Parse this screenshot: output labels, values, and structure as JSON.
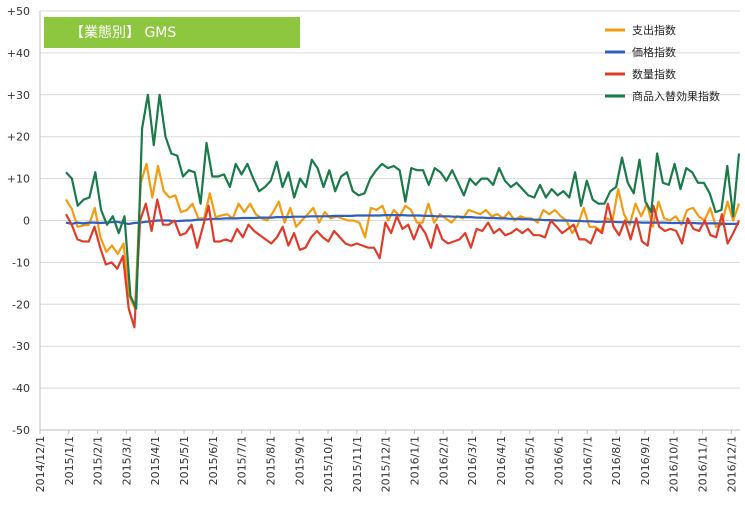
{
  "chart_data": {
    "type": "line",
    "title": "【業態別】 GMS",
    "title_bg": "#8dc63f",
    "ylim": [
      -50,
      50
    ],
    "y_ticks": [
      "-50",
      "-40",
      "-30",
      "-20",
      "-10",
      "0",
      "+10",
      "+20",
      "+30",
      "+40",
      "+50"
    ],
    "x_ticks": [
      "2014/12/1",
      "2015/1/1",
      "2015/2/1",
      "2015/3/1",
      "2015/4/1",
      "2015/5/1",
      "2015/6/1",
      "2015/7/1",
      "2015/8/1",
      "2015/9/1",
      "2015/10/1",
      "2015/11/1",
      "2015/12/1",
      "2016/1/1",
      "2016/2/1",
      "2016/3/1",
      "2016/4/1",
      "2016/5/1",
      "2016/6/1",
      "2016/7/1",
      "2016/8/1",
      "2016/9/1",
      "2016/10/1",
      "2016/11/1",
      "2016/12/1"
    ],
    "x_unit": "週",
    "grid": true,
    "legend_position": "top-right",
    "series": [
      {
        "name": "支出指数",
        "color": "#f39c12",
        "values": [
          5,
          2.8,
          -1.5,
          -1.2,
          -1,
          3,
          -4,
          -7.5,
          -6,
          -8,
          -5.5,
          -18,
          -21,
          9,
          13.5,
          5.5,
          13,
          7,
          5.5,
          6,
          2,
          2.5,
          4,
          0.5,
          0.5,
          6.5,
          0.8,
          1.2,
          1.5,
          0.5,
          4,
          2,
          4,
          1.5,
          0.5,
          0,
          2,
          4.5,
          -0.5,
          3,
          -1.5,
          0,
          1.5,
          3,
          -0.5,
          2,
          0.5,
          1,
          0.5,
          0,
          0,
          -0.5,
          -4,
          3,
          2.5,
          3.5,
          0,
          2.5,
          1,
          3.5,
          2.5,
          -0.5,
          -0.5,
          4,
          -0.5,
          1.5,
          0.5,
          -0.5,
          1,
          0.5,
          2.5,
          2,
          1.5,
          2.5,
          1,
          1.5,
          0.5,
          2,
          0,
          1,
          0.5,
          0.5,
          -0.5,
          2.5,
          1.5,
          2.5,
          1,
          0,
          -3,
          -1,
          3,
          -1.5,
          -1.5,
          -2.5,
          0.5,
          0,
          7.5,
          1.5,
          -1,
          4,
          1,
          4,
          -1.5,
          4.5,
          0.5,
          0,
          1,
          -1,
          2.5,
          3,
          1,
          0,
          3,
          -1.5,
          -1,
          4.5,
          0,
          4
        ],
        "values_note": "weekly"
      },
      {
        "name": "価格指数",
        "color": "#2e5fbf",
        "values": [
          -0.5,
          -0.8,
          -0.5,
          -0.7,
          -0.5,
          -0.5,
          -0.6,
          -0.5,
          -0.4,
          -0.3,
          -0.6,
          -0.8,
          -0.6,
          -0.5,
          -0.3,
          -0.2,
          0,
          0,
          0,
          -0.2,
          -0.1,
          0,
          0,
          0.2,
          0.2,
          0.3,
          0.4,
          0.4,
          0.5,
          0.5,
          0.5,
          0.6,
          0.6,
          0.6,
          0.7,
          0.7,
          0.7,
          0.8,
          0.8,
          0.8,
          0.9,
          0.9,
          0.9,
          1,
          1,
          1,
          1,
          1.1,
          1.1,
          1.1,
          1.1,
          1.2,
          1.2,
          1.2,
          1.2,
          1.2,
          1.3,
          1.3,
          1.3,
          1.3,
          1.2,
          1.2,
          1.2,
          1.1,
          1.1,
          1,
          1,
          1,
          0.9,
          0.9,
          0.8,
          0.8,
          0.7,
          0.7,
          0.6,
          0.6,
          0.5,
          0.5,
          0.4,
          0.4,
          0.3,
          0.3,
          0.2,
          0.2,
          0.1,
          0.1,
          0,
          0,
          0,
          -0.1,
          -0.1,
          -0.2,
          -0.2,
          -0.3,
          -0.3,
          -0.3,
          -0.3,
          -0.4,
          -0.4,
          -0.4,
          -0.4,
          -0.5,
          -0.5,
          -0.5,
          -0.5,
          -0.5,
          -0.6,
          -0.6,
          -0.6,
          -0.6,
          -0.6,
          -0.7,
          -0.7,
          -0.7,
          -0.7,
          -0.8,
          -0.8,
          -0.8,
          -0.8
        ],
        "values_note": "weekly"
      },
      {
        "name": "数量指数",
        "color": "#e03c2a",
        "values": [
          1.5,
          -1,
          -4.5,
          -5,
          -5,
          -1.5,
          -6.5,
          -10.5,
          -10,
          -11.5,
          -8.5,
          -21,
          -25.5,
          0,
          4,
          -2.5,
          5,
          -1,
          -1,
          0,
          -3.5,
          -3,
          -1,
          -6.5,
          -1.5,
          3.5,
          -5,
          -5,
          -4.5,
          -5,
          -2,
          -4,
          -1,
          -2.5,
          -3.5,
          -4.5,
          -5.5,
          -4,
          -1.5,
          -6,
          -3,
          -7,
          -6.5,
          -4,
          -2.5,
          -4,
          -5,
          -2.5,
          -4,
          -5.5,
          -6,
          -5.5,
          -6,
          -6.5,
          -6.5,
          -9,
          -0.5,
          -3,
          1,
          -2,
          -1,
          -4.5,
          -1,
          -3,
          -6.5,
          -1,
          -4.5,
          -5.5,
          -5,
          -4.5,
          -3,
          -6.5,
          -2,
          -2.5,
          -0.5,
          -3,
          -2,
          -3.5,
          -3,
          -2,
          -3,
          -2,
          -3.5,
          -3.5,
          -4,
          0,
          -1.5,
          -3,
          -2,
          -1,
          -4.5,
          -4.5,
          -5.5,
          -2,
          -3,
          4,
          -1.5,
          -3.5,
          0,
          -4.5,
          0.5,
          -5,
          -6,
          3.5,
          -1.5,
          -2.5,
          -2,
          -2.5,
          -5.5,
          0.5,
          -2,
          -2.5,
          0,
          -3.5,
          -4,
          1.5,
          -5.5,
          -3,
          0
        ],
        "values_note": "weekly"
      },
      {
        "name": "商品入替効果指数",
        "color": "#1a7a4a",
        "values": [
          11.5,
          10,
          3.5,
          5,
          5.5,
          11.5,
          2.5,
          -1,
          1,
          -3,
          1,
          -18,
          -21,
          22,
          30,
          18,
          30,
          20,
          16,
          15.5,
          10.5,
          12,
          11.5,
          4,
          18.5,
          10.5,
          10.5,
          11,
          8,
          13.5,
          11,
          13.5,
          10,
          7,
          8,
          9.5,
          14,
          8,
          11.5,
          5.5,
          10,
          8,
          14.5,
          12.5,
          8,
          12,
          7,
          10.5,
          11.5,
          7,
          6,
          6.5,
          10,
          12,
          13.5,
          12.5,
          13,
          12,
          4.5,
          12.5,
          12,
          12,
          8.5,
          12.5,
          11.5,
          9.5,
          12,
          9,
          6,
          10,
          8.5,
          10,
          10,
          8.5,
          12.5,
          9.5,
          8,
          9,
          7.5,
          6,
          5.5,
          8.5,
          5.5,
          7.5,
          6,
          7,
          5.5,
          11.5,
          3.5,
          9.5,
          5,
          4,
          4,
          7,
          8,
          15,
          9,
          6.5,
          14.5,
          4.5,
          2,
          16,
          9,
          8.5,
          13.5,
          7.5,
          12.5,
          11.5,
          9,
          9,
          6.5,
          2,
          2.5,
          13,
          1,
          16
        ],
        "values_note": "weekly"
      }
    ]
  }
}
